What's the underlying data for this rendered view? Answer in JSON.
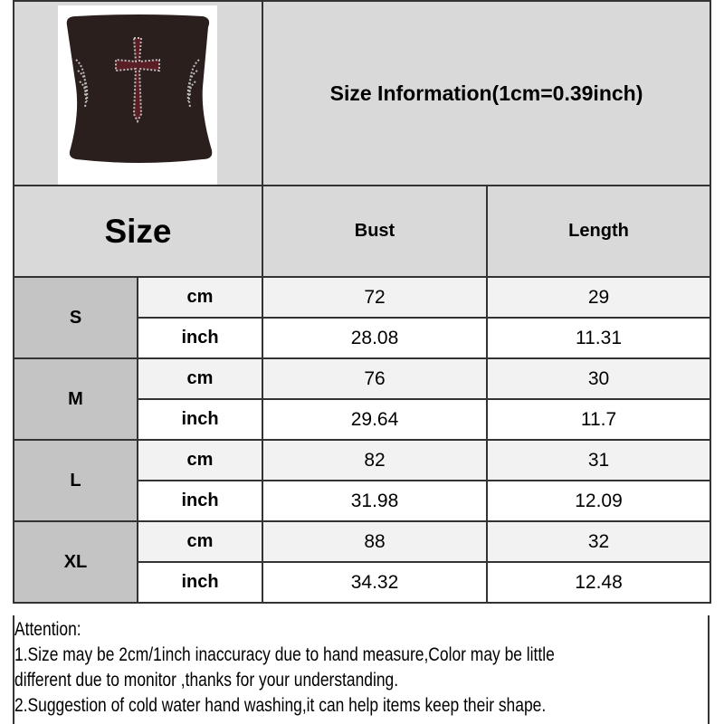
{
  "header": {
    "title": "Size Information(1cm=0.39inch)"
  },
  "product_image": {
    "description_icon": "strapless-top-with-cross-image",
    "colors": {
      "fabric": "#2a1f1d",
      "cross": "#5a1f25",
      "rhinestone": "#bdbdbd"
    }
  },
  "table": {
    "size_label": "Size",
    "columns": [
      "Bust",
      "Length"
    ],
    "rows": [
      {
        "size": "S",
        "cm_label": "cm",
        "inch_label": "inch",
        "cm": [
          "72",
          "29"
        ],
        "inch": [
          "28.08",
          "11.31"
        ]
      },
      {
        "size": "M",
        "cm_label": "cm",
        "inch_label": "inch",
        "cm": [
          "76",
          "30"
        ],
        "inch": [
          "29.64",
          "11.7"
        ]
      },
      {
        "size": "L",
        "cm_label": "cm",
        "inch_label": "inch",
        "cm": [
          "82",
          "31"
        ],
        "inch": [
          "31.98",
          "12.09"
        ]
      },
      {
        "size": "XL",
        "cm_label": "cm",
        "inch_label": "inch",
        "cm": [
          "88",
          "32"
        ],
        "inch": [
          "34.32",
          "12.48"
        ]
      }
    ]
  },
  "attention": {
    "heading": "Attention:",
    "lines": [
      "1.Size may be 2cm/1inch inaccuracy due to hand measure,Color may be little",
      "different due to monitor ,thanks for your understanding.",
      "2.Suggestion of cold water hand washing,it can help items keep their shape."
    ]
  },
  "colors": {
    "header_bg": "#d9d9d9",
    "size_cell_bg": "#c4c4c4",
    "cm_row_bg": "#f2f2f2",
    "border": "#333333"
  }
}
